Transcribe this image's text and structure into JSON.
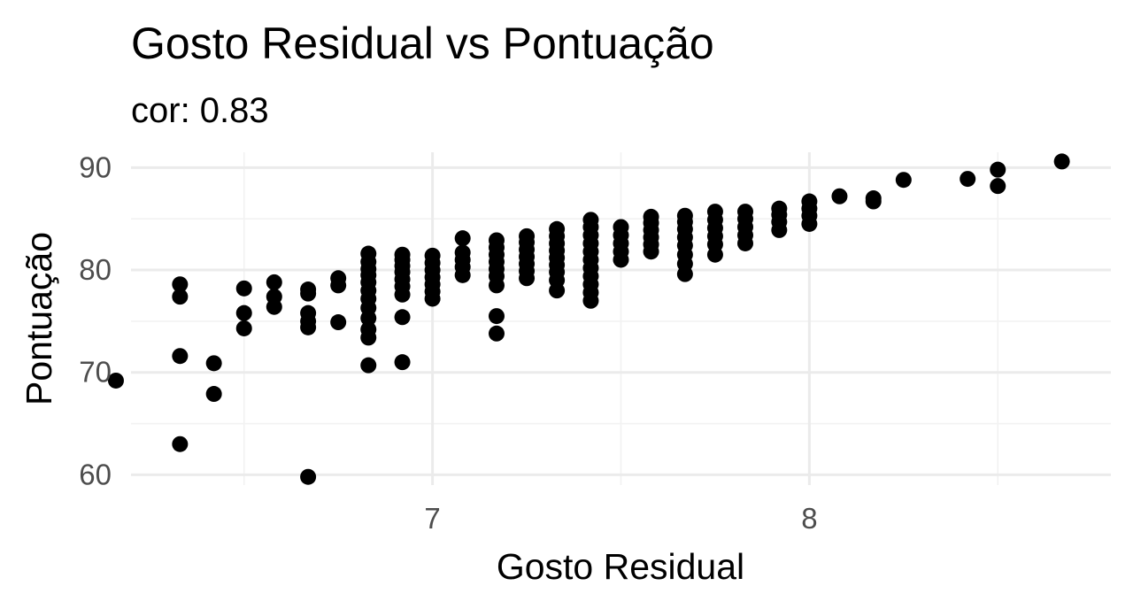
{
  "chart_data": {
    "type": "scatter",
    "title": "Gosto Residual vs Pontuação",
    "subtitle": "cor: 0.83",
    "xlabel": "Gosto Residual",
    "ylabel": "Pontuação",
    "xlim": [
      6.2,
      8.8
    ],
    "ylim": [
      59,
      91.5
    ],
    "x_major_ticks": [
      7,
      8
    ],
    "x_minor_ticks": [
      6.5,
      7.5,
      8.5
    ],
    "y_major_ticks": [
      60,
      70,
      80,
      90
    ],
    "y_minor_ticks": [
      65,
      75,
      85
    ],
    "x_tick_labels": [
      "7",
      "8"
    ],
    "y_tick_labels": [
      "60",
      "70",
      "80",
      "90"
    ],
    "grid": true,
    "points": [
      [
        6.16,
        69.2
      ],
      [
        6.33,
        63.0
      ],
      [
        6.33,
        71.6
      ],
      [
        6.33,
        77.4
      ],
      [
        6.33,
        78.6
      ],
      [
        6.42,
        67.9
      ],
      [
        6.42,
        70.9
      ],
      [
        6.5,
        74.3
      ],
      [
        6.5,
        75.8
      ],
      [
        6.5,
        78.2
      ],
      [
        6.58,
        76.4
      ],
      [
        6.58,
        77.4
      ],
      [
        6.58,
        78.8
      ],
      [
        6.67,
        59.8
      ],
      [
        6.67,
        74.4
      ],
      [
        6.67,
        75.0
      ],
      [
        6.67,
        75.8
      ],
      [
        6.67,
        77.7
      ],
      [
        6.67,
        78.1
      ],
      [
        6.75,
        74.9
      ],
      [
        6.75,
        78.5
      ],
      [
        6.75,
        79.2
      ],
      [
        6.83,
        70.7
      ],
      [
        6.83,
        73.4
      ],
      [
        6.83,
        74.2
      ],
      [
        6.83,
        75.3
      ],
      [
        6.83,
        76.3
      ],
      [
        6.83,
        77.2
      ],
      [
        6.83,
        78.0
      ],
      [
        6.83,
        78.8
      ],
      [
        6.83,
        79.5
      ],
      [
        6.83,
        80.1
      ],
      [
        6.83,
        80.8
      ],
      [
        6.83,
        81.6
      ],
      [
        6.92,
        71.0
      ],
      [
        6.92,
        75.4
      ],
      [
        6.92,
        77.6
      ],
      [
        6.92,
        78.4
      ],
      [
        6.92,
        79.1
      ],
      [
        6.92,
        79.8
      ],
      [
        6.92,
        80.4
      ],
      [
        6.92,
        81.0
      ],
      [
        6.92,
        81.5
      ],
      [
        7.0,
        77.2
      ],
      [
        7.0,
        77.9
      ],
      [
        7.0,
        78.6
      ],
      [
        7.0,
        79.3
      ],
      [
        7.0,
        80.0
      ],
      [
        7.0,
        80.7
      ],
      [
        7.0,
        81.4
      ],
      [
        7.08,
        79.5
      ],
      [
        7.08,
        80.3
      ],
      [
        7.08,
        81.0
      ],
      [
        7.08,
        81.7
      ],
      [
        7.08,
        83.1
      ],
      [
        7.17,
        73.8
      ],
      [
        7.17,
        75.5
      ],
      [
        7.17,
        78.5
      ],
      [
        7.17,
        79.4
      ],
      [
        7.17,
        80.1
      ],
      [
        7.17,
        80.8
      ],
      [
        7.17,
        81.5
      ],
      [
        7.17,
        82.2
      ],
      [
        7.17,
        82.9
      ],
      [
        7.25,
        79.2
      ],
      [
        7.25,
        79.9
      ],
      [
        7.25,
        80.6
      ],
      [
        7.25,
        81.3
      ],
      [
        7.25,
        82.0
      ],
      [
        7.25,
        82.7
      ],
      [
        7.25,
        83.3
      ],
      [
        7.33,
        78.0
      ],
      [
        7.33,
        79.0
      ],
      [
        7.33,
        79.8
      ],
      [
        7.33,
        80.5
      ],
      [
        7.33,
        81.2
      ],
      [
        7.33,
        81.9
      ],
      [
        7.33,
        82.6
      ],
      [
        7.33,
        83.3
      ],
      [
        7.33,
        84.0
      ],
      [
        7.42,
        77.0
      ],
      [
        7.42,
        77.8
      ],
      [
        7.42,
        78.6
      ],
      [
        7.42,
        79.4
      ],
      [
        7.42,
        80.2
      ],
      [
        7.42,
        81.0
      ],
      [
        7.42,
        81.8
      ],
      [
        7.42,
        82.6
      ],
      [
        7.42,
        83.4
      ],
      [
        7.42,
        84.2
      ],
      [
        7.42,
        84.9
      ],
      [
        7.5,
        81.0
      ],
      [
        7.5,
        81.8
      ],
      [
        7.5,
        82.6
      ],
      [
        7.5,
        83.4
      ],
      [
        7.5,
        84.2
      ],
      [
        7.58,
        81.8
      ],
      [
        7.58,
        82.5
      ],
      [
        7.58,
        83.2
      ],
      [
        7.58,
        83.9
      ],
      [
        7.58,
        84.6
      ],
      [
        7.58,
        85.2
      ],
      [
        7.67,
        79.6
      ],
      [
        7.67,
        80.6
      ],
      [
        7.67,
        81.5
      ],
      [
        7.67,
        82.4
      ],
      [
        7.67,
        83.2
      ],
      [
        7.67,
        84.0
      ],
      [
        7.67,
        84.7
      ],
      [
        7.67,
        85.3
      ],
      [
        7.75,
        81.5
      ],
      [
        7.75,
        82.5
      ],
      [
        7.75,
        83.3
      ],
      [
        7.75,
        84.1
      ],
      [
        7.75,
        84.9
      ],
      [
        7.75,
        85.7
      ],
      [
        7.83,
        82.6
      ],
      [
        7.83,
        83.4
      ],
      [
        7.83,
        84.2
      ],
      [
        7.83,
        85.0
      ],
      [
        7.83,
        85.7
      ],
      [
        7.92,
        83.9
      ],
      [
        7.92,
        84.7
      ],
      [
        7.92,
        85.4
      ],
      [
        7.92,
        86.0
      ],
      [
        8.0,
        84.5
      ],
      [
        8.0,
        85.3
      ],
      [
        8.0,
        86.0
      ],
      [
        8.0,
        86.7
      ],
      [
        8.08,
        87.2
      ],
      [
        8.17,
        86.7
      ],
      [
        8.17,
        87.0
      ],
      [
        8.25,
        88.8
      ],
      [
        8.42,
        88.9
      ],
      [
        8.5,
        88.2
      ],
      [
        8.5,
        89.8
      ],
      [
        8.67,
        90.6
      ]
    ]
  }
}
